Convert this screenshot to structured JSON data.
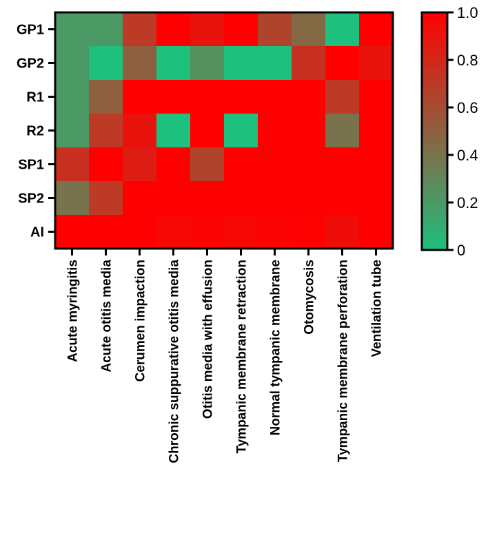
{
  "chart_data": {
    "type": "heatmap",
    "title": "",
    "xlabel": "",
    "ylabel": "",
    "rows": [
      "GP1",
      "GP2",
      "R1",
      "R2",
      "SP1",
      "SP2",
      "AI"
    ],
    "columns": [
      "Acute myringitis",
      "Acute otitis media",
      "Cerumen impaction",
      "Chronic suppurative otitis media",
      "Otitis media with effusion",
      "Tympanic membrane retraction",
      "Normal tympanic membrane",
      "Otomycosis",
      "Tympanic membrane perforation",
      "Ventilation tube"
    ],
    "values": [
      [
        0.2,
        0.2,
        0.7,
        1.0,
        0.9,
        1.0,
        0.65,
        0.45,
        0.0,
        1.0
      ],
      [
        0.2,
        0.0,
        0.5,
        0.0,
        0.25,
        0.0,
        0.0,
        0.75,
        1.0,
        0.9
      ],
      [
        0.2,
        0.5,
        1.0,
        1.0,
        1.0,
        1.0,
        1.0,
        1.0,
        0.7,
        1.0
      ],
      [
        0.2,
        0.7,
        0.9,
        0.0,
        1.0,
        0.0,
        1.0,
        1.0,
        0.4,
        1.0
      ],
      [
        0.75,
        1.0,
        0.85,
        1.0,
        0.65,
        1.0,
        1.0,
        1.0,
        1.0,
        1.0
      ],
      [
        0.4,
        0.7,
        1.0,
        1.0,
        1.0,
        1.0,
        1.0,
        1.0,
        1.0,
        1.0
      ],
      [
        1.0,
        1.0,
        1.0,
        0.96,
        0.98,
        0.96,
        0.98,
        0.99,
        0.93,
        1.0
      ]
    ],
    "colorbar": {
      "range": [
        0,
        1.0
      ],
      "ticks": [
        {
          "value": 0,
          "label": "0"
        },
        {
          "value": 0.2,
          "label": "0.2"
        },
        {
          "value": 0.4,
          "label": "0.4"
        },
        {
          "value": 0.6,
          "label": "0.6"
        },
        {
          "value": 0.8,
          "label": "0.8"
        },
        {
          "value": 1.0,
          "label": "1.0"
        }
      ],
      "low_color": "#1ec07e",
      "high_color": "#ff0000",
      "placement": "right"
    },
    "legend": "colorbar-right",
    "grid": false
  }
}
